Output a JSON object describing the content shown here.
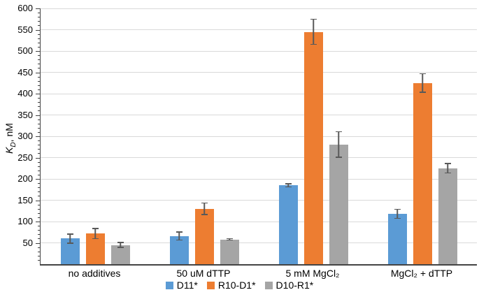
{
  "chart_data": {
    "type": "bar",
    "title": "",
    "ylabel_parts": {
      "var": "K",
      "sub": "D",
      "unit": ", nM"
    },
    "ylim": [
      0,
      600
    ],
    "ytick_step": 50,
    "minor_tick_step": 10,
    "grid": "horizontal",
    "legend_position": "bottom",
    "categories": [
      "no additives",
      "50 uM dTTP",
      "5 mM MgCl₂",
      "MgCl₂ + dTTP"
    ],
    "series": [
      {
        "name": "D11*",
        "color": "#5b9bd5",
        "values": [
          60,
          66,
          185,
          118
        ],
        "errors": [
          12,
          11,
          5,
          12
        ]
      },
      {
        "name": "R10-D1*",
        "color": "#ed7d31",
        "values": [
          72,
          130,
          545,
          425
        ],
        "errors": [
          13,
          15,
          31,
          23
        ]
      },
      {
        "name": "D10-R1*",
        "color": "#a5a5a5",
        "values": [
          45,
          58,
          281,
          225
        ],
        "errors": [
          7,
          3,
          31,
          12
        ]
      }
    ],
    "colors": {
      "gridline": "#d9d9d9",
      "axis": "#444444",
      "error_bar": "#595959",
      "text": "#000000"
    }
  }
}
